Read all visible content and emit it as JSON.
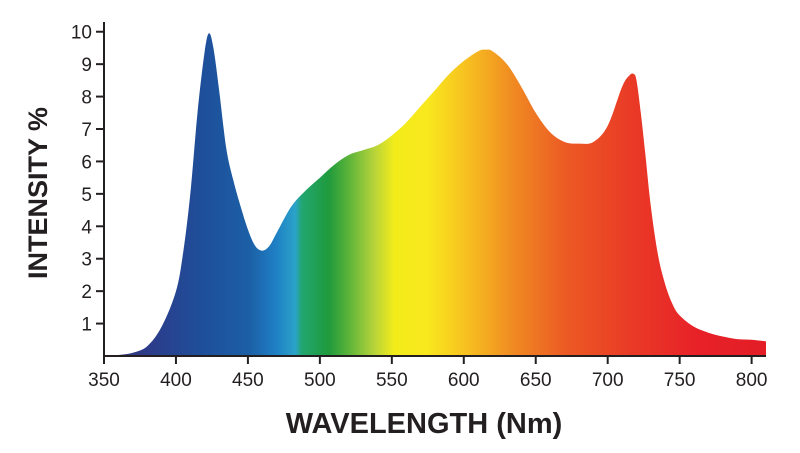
{
  "chart_data": {
    "type": "area",
    "title": "",
    "xlabel": "WAVELENGTH (Nm)",
    "ylabel": "INTENSITY %",
    "xlim": [
      350,
      810
    ],
    "ylim": [
      0,
      10.3
    ],
    "x_ticks": [
      350,
      400,
      450,
      500,
      550,
      600,
      650,
      700,
      750,
      800
    ],
    "y_ticks": [
      1,
      2,
      3,
      4,
      5,
      6,
      7,
      8,
      9,
      10
    ],
    "grid": false,
    "fill": "visible-spectrum gradient (violet → blue → green → yellow → orange → red)",
    "series": [
      {
        "x": [
          350,
          360,
          370,
          380,
          390,
          400,
          405,
          410,
          415,
          420,
          423,
          426,
          430,
          435,
          440,
          445,
          450,
          455,
          460,
          465,
          470,
          480,
          490,
          500,
          510,
          520,
          530,
          540,
          550,
          560,
          570,
          580,
          590,
          600,
          610,
          615,
          620,
          630,
          640,
          650,
          660,
          670,
          680,
          690,
          700,
          710,
          715,
          718,
          720,
          723,
          726,
          730,
          735,
          740,
          745,
          750,
          760,
          770,
          780,
          790,
          800,
          810
        ],
        "y": [
          0.0,
          0.03,
          0.1,
          0.3,
          0.9,
          2.0,
          3.2,
          5.0,
          7.5,
          9.4,
          9.95,
          9.5,
          8.2,
          6.4,
          5.4,
          4.6,
          3.9,
          3.4,
          3.25,
          3.4,
          3.8,
          4.6,
          5.1,
          5.5,
          5.9,
          6.2,
          6.35,
          6.5,
          6.8,
          7.2,
          7.7,
          8.2,
          8.7,
          9.1,
          9.4,
          9.45,
          9.4,
          9.0,
          8.3,
          7.5,
          6.9,
          6.6,
          6.55,
          6.6,
          7.1,
          8.3,
          8.65,
          8.7,
          8.5,
          7.5,
          6.3,
          4.6,
          3.1,
          2.2,
          1.6,
          1.25,
          0.9,
          0.72,
          0.6,
          0.52,
          0.5,
          0.45
        ]
      }
    ]
  }
}
